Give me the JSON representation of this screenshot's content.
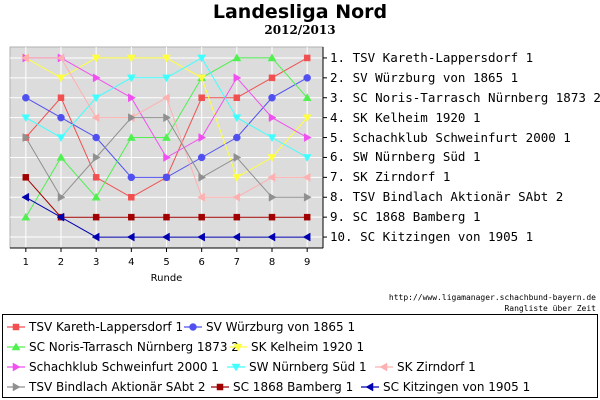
{
  "chart_data": {
    "type": "line",
    "title": "Landesliga Nord",
    "subtitle": "2012/2013",
    "xlabel": "Runde",
    "ylabel": "",
    "x": [
      1,
      2,
      3,
      4,
      5,
      6,
      7,
      8,
      9
    ],
    "y_range": [
      1,
      10
    ],
    "y_inverted": true,
    "grid": true,
    "legend_position": "bottom",
    "series": [
      {
        "name": "TSV Kareth-Lappersdorf 1",
        "color": "#f05050",
        "marker": "square",
        "values": [
          5,
          3,
          7,
          8,
          7,
          3,
          3,
          2,
          1
        ]
      },
      {
        "name": "SV Würzburg von 1865 1",
        "color": "#5050f0",
        "marker": "circle",
        "values": [
          3,
          4,
          5,
          7,
          7,
          6,
          5,
          3,
          2
        ]
      },
      {
        "name": "SC Noris-Tarrasch Nürnberg 1873 2",
        "color": "#50f050",
        "marker": "triangle-up",
        "values": [
          9,
          6,
          8,
          5,
          5,
          2,
          1,
          1,
          3
        ]
      },
      {
        "name": "SK Kelheim 1920 1",
        "color": "#ffff40",
        "marker": "triangle-down",
        "values": [
          1,
          2,
          1,
          1,
          1,
          2,
          7,
          6,
          4
        ]
      },
      {
        "name": "Schachklub Schweinfurt 2000 1",
        "color": "#f050f0",
        "marker": "triangle-right",
        "values": [
          1,
          1,
          2,
          3,
          6,
          5,
          2,
          4,
          5
        ]
      },
      {
        "name": "SW Nürnberg Süd 1",
        "color": "#40ffff",
        "marker": "triangle-down",
        "values": [
          4,
          5,
          3,
          2,
          2,
          1,
          4,
          5,
          6
        ]
      },
      {
        "name": "SK Zirndorf 1",
        "color": "#ffb0b0",
        "marker": "triangle-left",
        "values": [
          1,
          1,
          4,
          4,
          3,
          8,
          8,
          7,
          7
        ]
      },
      {
        "name": "TSV Bindlach Aktionär SAbt 2",
        "color": "#909090",
        "marker": "triangle-right",
        "values": [
          5,
          8,
          6,
          4,
          4,
          7,
          6,
          8,
          8
        ]
      },
      {
        "name": "SC 1868 Bamberg 1",
        "color": "#a00000",
        "marker": "square",
        "values": [
          7,
          9,
          9,
          9,
          9,
          9,
          9,
          9,
          9
        ]
      },
      {
        "name": "SC Kitzingen von 1905 1",
        "color": "#0000b0",
        "marker": "triangle-left",
        "values": [
          8,
          9,
          10,
          10,
          10,
          10,
          10,
          10,
          10
        ]
      }
    ],
    "ranking": [
      {
        "rank": " 1.",
        "team": "TSV Kareth-Lappersdorf 1"
      },
      {
        "rank": " 2.",
        "team": "SV Würzburg von 1865 1"
      },
      {
        "rank": " 3.",
        "team": "SC Noris-Tarrasch Nürnberg 1873 2"
      },
      {
        "rank": " 4.",
        "team": "SK Kelheim 1920 1"
      },
      {
        "rank": " 5.",
        "team": "Schachklub Schweinfurt 2000 1"
      },
      {
        "rank": " 6.",
        "team": "SW Nürnberg Süd 1"
      },
      {
        "rank": " 7.",
        "team": "SK Zirndorf 1"
      },
      {
        "rank": " 8.",
        "team": "TSV Bindlach Aktionär SAbt 2"
      },
      {
        "rank": " 9.",
        "team": "SC 1868 Bamberg 1"
      },
      {
        "rank": "10.",
        "team": "SC Kitzingen von 1905 1"
      }
    ]
  },
  "footer": {
    "url": "http://www.ligamanager.schachbund-bayern.de",
    "caption": "Rangliste über Zeit"
  },
  "colors": {
    "plot_background": "#dcdcdc",
    "grid": "#ffffff",
    "axis": "#000000"
  }
}
